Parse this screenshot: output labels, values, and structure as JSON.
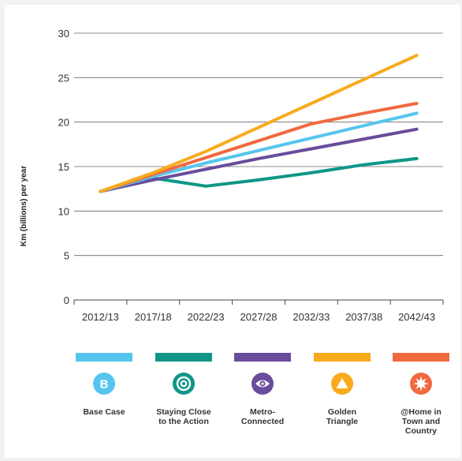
{
  "chart_data": {
    "type": "line",
    "ylabel": "Km (billions) per year",
    "xlabel": "",
    "ylim": [
      0,
      30
    ],
    "yticks": [
      0,
      5,
      10,
      15,
      20,
      25,
      30
    ],
    "categories": [
      "2012/13",
      "2017/18",
      "2022/23",
      "2027/28",
      "2032/33",
      "2037/38",
      "2042/43"
    ],
    "grid": "horizontal",
    "legend_position": "bottom",
    "series": [
      {
        "name": "Base Case",
        "color": "#56c5ee",
        "icon": "letter-b-icon",
        "values": [
          12.2,
          13.9,
          15.4,
          16.8,
          18.2,
          19.6,
          21.0
        ]
      },
      {
        "name": "Staying Close to the Action",
        "color": "#0f9688",
        "icon": "target-rings-icon",
        "values": [
          12.2,
          13.7,
          12.8,
          13.5,
          14.3,
          15.2,
          15.9
        ]
      },
      {
        "name": "Metro-Connected",
        "color": "#6a4c9c",
        "icon": "eye-icon",
        "values": [
          12.2,
          13.5,
          14.7,
          15.9,
          17.0,
          18.1,
          19.2
        ]
      },
      {
        "name": "Golden Triangle",
        "color": "#f9ab1d",
        "icon": "triangle-icon",
        "values": [
          12.2,
          14.3,
          16.7,
          19.4,
          22.1,
          24.8,
          27.5
        ]
      },
      {
        "name": "@Home in Town and Country",
        "color": "#f06a40",
        "icon": "starburst-icon",
        "values": [
          12.2,
          14.1,
          16.0,
          17.9,
          19.8,
          21.0,
          22.1
        ]
      }
    ]
  },
  "legend": [
    {
      "label": "Base Case",
      "glyph": "B"
    },
    {
      "label": "Staying Close\nto the Action"
    },
    {
      "label": "Metro-\nConnected"
    },
    {
      "label": "Golden\nTriangle"
    },
    {
      "label": "@Home in\nTown and\nCountry"
    }
  ]
}
